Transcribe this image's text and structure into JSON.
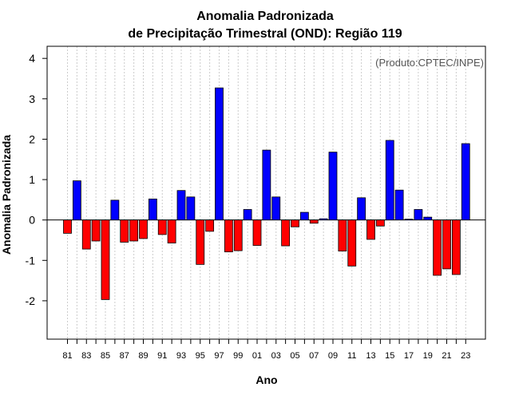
{
  "chart_data": {
    "type": "bar",
    "title": "Anomalia Padronizada",
    "subtitle": "de Precipitação Trimestral (OND): Região 119",
    "xlabel": "Ano",
    "ylabel": "Anomalia Padronizada",
    "annotation": "(Produto:CPTEC/INPE)",
    "ylim": [
      -2.95,
      4.3
    ],
    "yticks": [
      -2,
      -1,
      0,
      1,
      2,
      3,
      4
    ],
    "grid": true,
    "colors": {
      "positive": "#0000ff",
      "negative": "#ff0000",
      "grid": "#cccccc"
    },
    "categories": [
      "81",
      "82",
      "83",
      "84",
      "85",
      "86",
      "87",
      "88",
      "89",
      "90",
      "91",
      "92",
      "93",
      "94",
      "95",
      "96",
      "97",
      "98",
      "99",
      "00",
      "01",
      "02",
      "03",
      "04",
      "05",
      "06",
      "07",
      "08",
      "09",
      "10",
      "11",
      "12",
      "13",
      "14",
      "15",
      "16",
      "17",
      "18",
      "19",
      "20",
      "21",
      "22",
      "23"
    ],
    "xtick_labels": [
      "81",
      "83",
      "85",
      "87",
      "89",
      "91",
      "93",
      "95",
      "97",
      "99",
      "01",
      "03",
      "05",
      "07",
      "09",
      "11",
      "13",
      "15",
      "17",
      "19",
      "21",
      "23"
    ],
    "values": [
      -0.33,
      0.97,
      -0.72,
      -0.52,
      -1.97,
      0.49,
      -0.55,
      -0.52,
      -0.46,
      0.52,
      -0.36,
      -0.57,
      0.73,
      0.57,
      -1.1,
      -0.28,
      3.27,
      -0.79,
      -0.76,
      0.26,
      -0.63,
      1.73,
      0.57,
      -0.64,
      -0.17,
      0.19,
      -0.08,
      0.03,
      1.68,
      -0.77,
      -1.14,
      0.55,
      -0.48,
      -0.15,
      1.97,
      0.74,
      0.02,
      0.26,
      0.07,
      -1.37,
      -1.21,
      -1.35,
      1.89
    ]
  }
}
